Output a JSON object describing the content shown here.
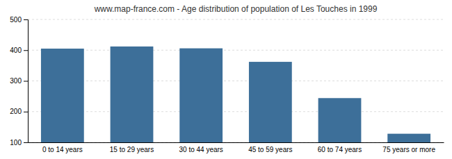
{
  "chart_data": {
    "type": "bar",
    "title": "www.map-france.com - Age distribution of population of Les Touches in 1999",
    "categories": [
      "0 to 14 years",
      "15 to 29 years",
      "30 to 44 years",
      "45 to 59 years",
      "60 to 74 years",
      "75 years or more"
    ],
    "values": [
      405,
      412,
      406,
      362,
      244,
      128
    ],
    "color": "#3d6f99",
    "ylim": [
      100,
      500
    ],
    "yticks": [
      100,
      200,
      300,
      400,
      500
    ],
    "grid": true
  }
}
